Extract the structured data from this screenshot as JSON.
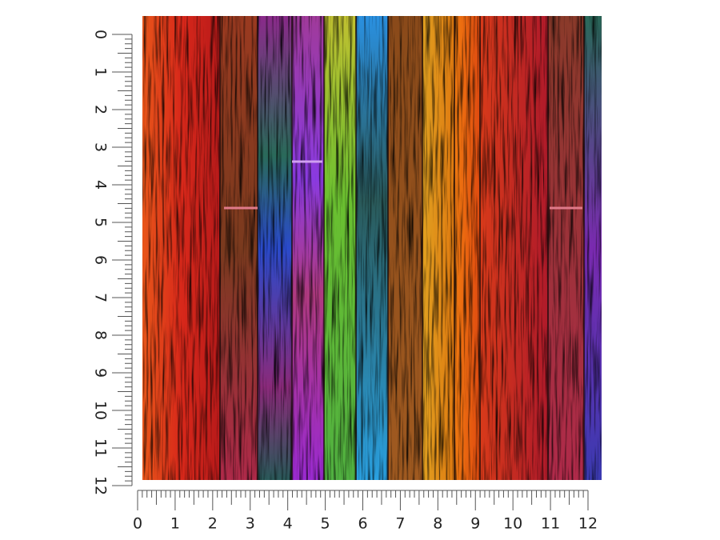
{
  "ruler_left": {
    "labels": [
      0,
      1,
      2,
      3,
      4,
      5,
      6,
      7,
      8,
      9,
      10,
      11,
      12
    ]
  },
  "ruler_bottom": {
    "labels": [
      0,
      1,
      2,
      3,
      4,
      5,
      6,
      7,
      8,
      9,
      10,
      11,
      12
    ]
  }
}
